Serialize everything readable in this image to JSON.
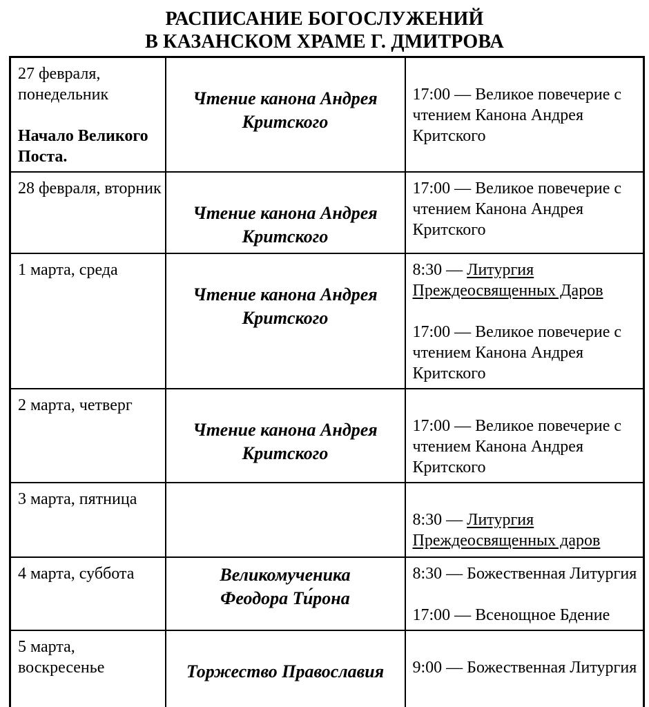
{
  "title": {
    "line1": "РАСПИСАНИЕ БОГОСЛУЖЕНИЙ",
    "line2": "В КАЗАНСКОМ ХРАМЕ Г. ДМИТРОВА"
  },
  "table": {
    "columns": [
      "date",
      "feast",
      "services"
    ],
    "rows": [
      {
        "date": [
          {
            "text": "27 февраля, понедельник"
          },
          {
            "text": ""
          },
          {
            "text": "Начало Великого Поста.",
            "bold": true
          }
        ],
        "feast": [
          "",
          "Чтение канона Андрея",
          "Критского"
        ],
        "services": [
          {
            "plain": ""
          },
          {
            "plain": "17:00 — Великое повечерие с чтением Канона Андрея Критского"
          }
        ]
      },
      {
        "date": [
          {
            "text": "28 февраля, вторник"
          }
        ],
        "feast": [
          "",
          "Чтение канона Андрея",
          "Критского"
        ],
        "services": [
          {
            "plain": "17:00 — Великое повечерие с чтением Канона Андрея Критского"
          }
        ]
      },
      {
        "date": [
          {
            "text": "1 марта, среда"
          }
        ],
        "feast": [
          "",
          "Чтение канона Андрея",
          "Критского"
        ],
        "services": [
          {
            "plain": "8:30 — ",
            "underlined": "Литургия Преждеосвященных Даров"
          },
          {
            "plain": ""
          },
          {
            "plain": "17:00 — Великое повечерие с чтением Канона Андрея Критского"
          }
        ]
      },
      {
        "date": [
          {
            "text": "2 марта, четверг"
          }
        ],
        "feast": [
          "",
          "Чтение канона Андрея",
          "Критского"
        ],
        "services": [
          {
            "plain": ""
          },
          {
            "plain": "17:00 — Великое повечерие с чтением Канона Андрея Критского"
          }
        ]
      },
      {
        "date": [
          {
            "text": "3 марта, пятница"
          }
        ],
        "feast": [],
        "services": [
          {
            "plain": ""
          },
          {
            "plain": "8:30 — ",
            "underlined": "Литургия Преждеосвященных даров"
          }
        ]
      },
      {
        "date": [
          {
            "text": "4 марта, суббота"
          }
        ],
        "feast": [
          "Великомученика",
          "Феодора Ти́рона"
        ],
        "services": [
          {
            "plain": "8:30 — Божественная Литургия"
          },
          {
            "plain": ""
          },
          {
            "plain": "17:00 — Всенощное Бдение"
          }
        ]
      },
      {
        "date": [
          {
            "text": "5 марта, воскресенье"
          }
        ],
        "feast": [
          "",
          "Торжество Православия"
        ],
        "services": [
          {
            "plain": ""
          },
          {
            "plain": "9:00 — Божественная Литургия"
          }
        ]
      }
    ]
  }
}
